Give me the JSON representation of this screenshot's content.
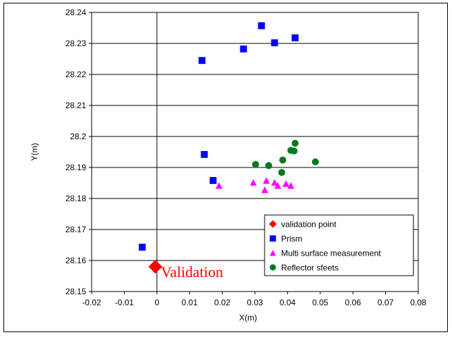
{
  "chart_data": {
    "type": "scatter",
    "xlabel": "X(m)",
    "ylabel": "Y(m)",
    "xlim": [
      -0.02,
      0.08
    ],
    "ylim": [
      28.15,
      28.24
    ],
    "xticks": [
      "-0.02",
      "-0.01",
      "0",
      "0.01",
      "0.02",
      "0.03",
      "0.04",
      "0.05",
      "0.06",
      "0.07",
      "0.08"
    ],
    "yticks": [
      "28.15",
      "28.16",
      "28.17",
      "28.18",
      "28.19",
      "28.2",
      "28.21",
      "28.22",
      "28.23",
      "28.24"
    ],
    "grid": "horizontal",
    "legend_position": "bottom-right",
    "series": [
      {
        "name": "validation point",
        "marker": "diamond",
        "color": "#ff0000",
        "points": [
          [
            -0.0005,
            28.158
          ]
        ]
      },
      {
        "name": "Prism",
        "marker": "square",
        "color": "#0000ff",
        "points": [
          [
            -0.0045,
            28.1643
          ],
          [
            0.0138,
            28.2245
          ],
          [
            0.0145,
            28.1942
          ],
          [
            0.0172,
            28.1858
          ],
          [
            0.0265,
            28.2282
          ],
          [
            0.032,
            28.2357
          ],
          [
            0.036,
            28.2302
          ],
          [
            0.0423,
            28.2318
          ]
        ]
      },
      {
        "name": "Multi surface measurement",
        "marker": "triangle",
        "color": "#ff00ff",
        "points": [
          [
            0.019,
            28.1842
          ],
          [
            0.0295,
            28.1852
          ],
          [
            0.033,
            28.1828
          ],
          [
            0.0335,
            28.1858
          ],
          [
            0.036,
            28.1852
          ],
          [
            0.037,
            28.1842
          ],
          [
            0.0395,
            28.1848
          ],
          [
            0.041,
            28.1842
          ]
        ]
      },
      {
        "name": "Reflector sfeets",
        "marker": "circle",
        "color": "#007a1e",
        "points": [
          [
            0.0302,
            28.191
          ],
          [
            0.0342,
            28.1906
          ],
          [
            0.0382,
            28.1884
          ],
          [
            0.0385,
            28.1924
          ],
          [
            0.041,
            28.1955
          ],
          [
            0.042,
            28.1953
          ],
          [
            0.0423,
            28.1978
          ],
          [
            0.0485,
            28.1918
          ]
        ]
      }
    ],
    "annotations": [
      {
        "text": "Validation",
        "x": 0.0012,
        "y": 28.1564,
        "color": "#ff0000"
      }
    ]
  }
}
